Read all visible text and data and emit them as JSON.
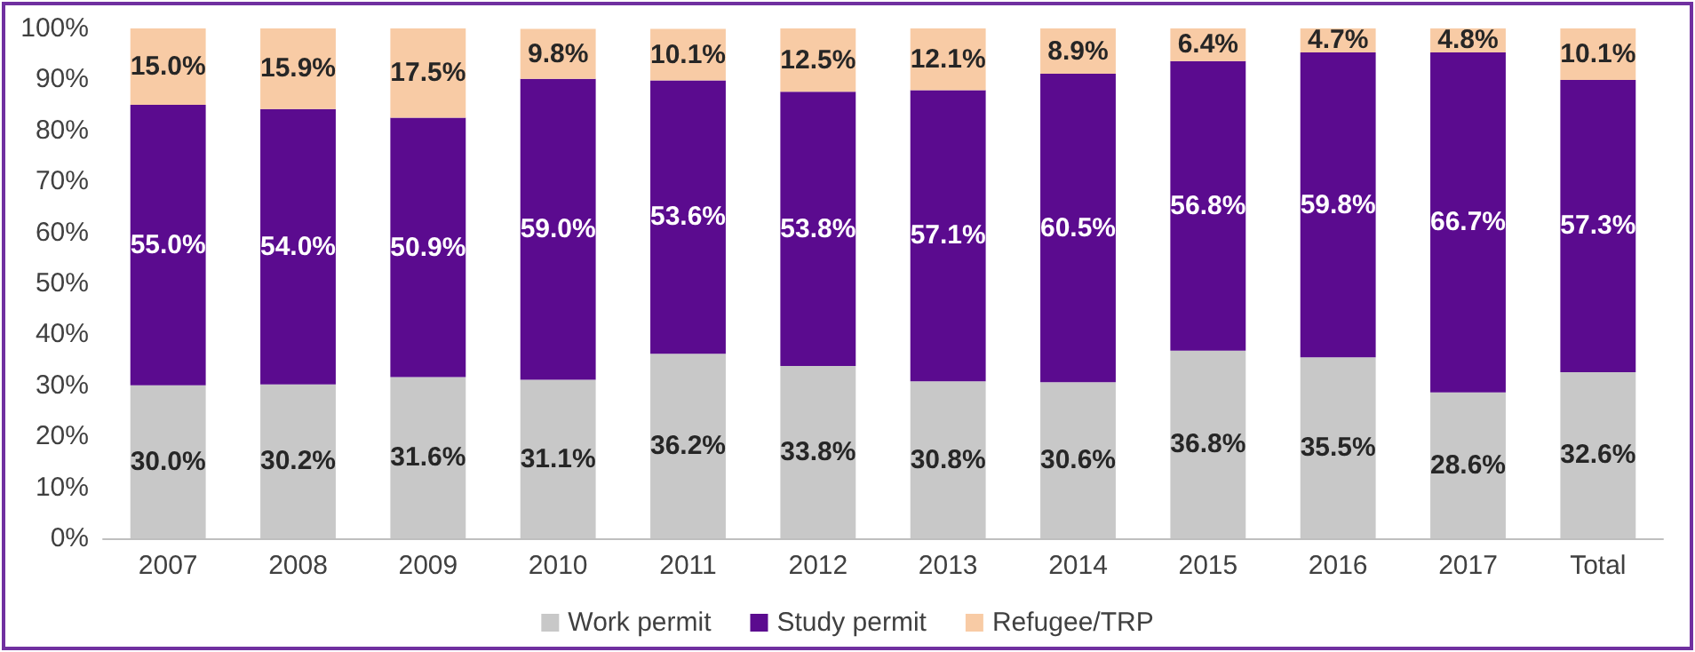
{
  "chart_data": {
    "type": "bar",
    "stacked": true,
    "categories": [
      "2007",
      "2008",
      "2009",
      "2010",
      "2011",
      "2012",
      "2013",
      "2014",
      "2015",
      "2016",
      "2017",
      "Total"
    ],
    "series": [
      {
        "name": "Work permit",
        "color": "#c8c8c8",
        "values": [
          30.0,
          30.2,
          31.6,
          31.1,
          36.2,
          33.8,
          30.8,
          30.6,
          36.8,
          35.5,
          28.6,
          32.6
        ],
        "value_labels": [
          "30.0%",
          "30.2%",
          "31.6%",
          "31.1%",
          "36.2%",
          "33.8%",
          "30.8%",
          "30.6%",
          "36.8%",
          "35.5%",
          "28.6%",
          "32.6%"
        ]
      },
      {
        "name": "Study permit",
        "color": "#5b0b8f",
        "values": [
          55.0,
          54.0,
          50.9,
          59.0,
          53.6,
          53.8,
          57.1,
          60.5,
          56.8,
          59.8,
          66.7,
          57.3
        ],
        "value_labels": [
          "55.0%",
          "54.0%",
          "50.9%",
          "59.0%",
          "53.6%",
          "53.8%",
          "57.1%",
          "60.5%",
          "56.8%",
          "59.8%",
          "66.7%",
          "57.3%"
        ]
      },
      {
        "name": "Refugee/TRP",
        "color": "#f8cba5",
        "values": [
          15.0,
          15.9,
          17.5,
          9.8,
          10.1,
          12.5,
          12.1,
          8.9,
          6.4,
          4.7,
          4.8,
          10.1
        ],
        "value_labels": [
          "15.0%",
          "15.9%",
          "17.5%",
          "9.8%",
          "10.1%",
          "12.5%",
          "12.1%",
          "8.9%",
          "6.4%",
          "4.7%",
          "4.8%",
          "10.1%"
        ]
      }
    ],
    "ylim": [
      0,
      100
    ],
    "yticks": [
      {
        "value": 0,
        "label": "0%"
      },
      {
        "value": 10,
        "label": "10%"
      },
      {
        "value": 20,
        "label": "20%"
      },
      {
        "value": 30,
        "label": "30%"
      },
      {
        "value": 40,
        "label": "40%"
      },
      {
        "value": 50,
        "label": "50%"
      },
      {
        "value": 60,
        "label": "60%"
      },
      {
        "value": 70,
        "label": "70%"
      },
      {
        "value": 80,
        "label": "80%"
      },
      {
        "value": 90,
        "label": "90%"
      },
      {
        "value": 100,
        "label": "100%"
      }
    ],
    "grid": false,
    "legend": "bottom"
  }
}
